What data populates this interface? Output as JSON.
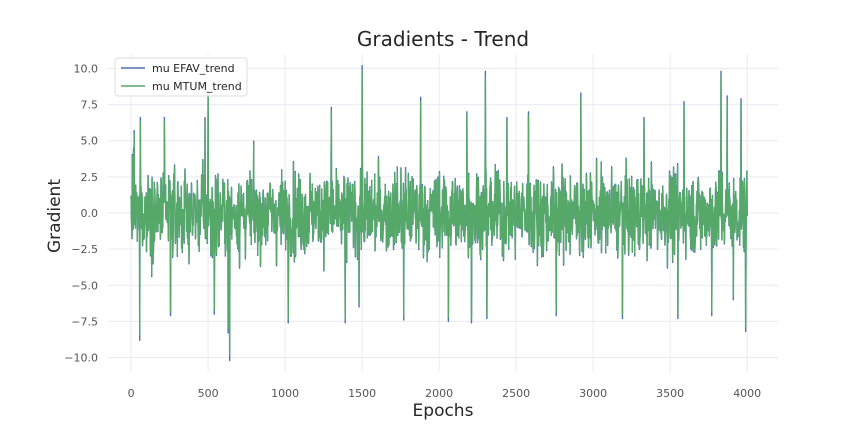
{
  "chart_data": {
    "type": "line",
    "title": "Gradients - Trend",
    "xlabel": "Epochs",
    "ylabel": "Gradient",
    "xlim": [
      -150,
      4200
    ],
    "ylim": [
      -11,
      11
    ],
    "x_ticks": [
      0,
      500,
      1000,
      1500,
      2000,
      2500,
      3000,
      3500,
      4000
    ],
    "y_ticks": [
      -10.0,
      -7.5,
      -5.0,
      -2.5,
      0.0,
      2.5,
      5.0,
      7.5,
      10.0
    ],
    "x_tick_labels": [
      "0",
      "500",
      "1000",
      "1500",
      "2000",
      "2500",
      "3000",
      "3500",
      "4000"
    ],
    "y_tick_labels": [
      "−10.0",
      "−7.5",
      "−5.0",
      "−2.5",
      "0.0",
      "2.5",
      "5.0",
      "7.5",
      "10.0"
    ],
    "grid": true,
    "legend_position": "top-left",
    "series": [
      {
        "name": "mu EFAV_trend",
        "color": "#4c72b0"
      },
      {
        "name": "mu MTUM_trend",
        "color": "#55a868"
      }
    ],
    "data_summary": {
      "x_start": 0,
      "x_end": 4000,
      "baseline_amplitude": 3.2,
      "peaks": [
        {
          "x": 15,
          "y": 4.5
        },
        {
          "x": 20,
          "y": 5.7
        },
        {
          "x": 55,
          "y": -8.8
        },
        {
          "x": 60,
          "y": 6.6
        },
        {
          "x": 215,
          "y": 6.6
        },
        {
          "x": 255,
          "y": -7.1
        },
        {
          "x": 480,
          "y": 6.6
        },
        {
          "x": 500,
          "y": 8.4
        },
        {
          "x": 540,
          "y": -7.0
        },
        {
          "x": 630,
          "y": -8.3
        },
        {
          "x": 640,
          "y": -10.2
        },
        {
          "x": 1020,
          "y": -7.6
        },
        {
          "x": 1300,
          "y": 7.3
        },
        {
          "x": 1390,
          "y": -7.6
        },
        {
          "x": 1480,
          "y": -6.5
        },
        {
          "x": 1500,
          "y": 10.2
        },
        {
          "x": 1770,
          "y": -7.4
        },
        {
          "x": 1880,
          "y": 8.0
        },
        {
          "x": 2060,
          "y": -7.5
        },
        {
          "x": 2180,
          "y": 7.0
        },
        {
          "x": 2210,
          "y": -7.6
        },
        {
          "x": 2300,
          "y": 9.8
        },
        {
          "x": 2310,
          "y": -7.3
        },
        {
          "x": 2440,
          "y": 6.6
        },
        {
          "x": 2580,
          "y": 7.0
        },
        {
          "x": 2760,
          "y": -7.1
        },
        {
          "x": 2920,
          "y": 8.3
        },
        {
          "x": 3190,
          "y": -7.3
        },
        {
          "x": 3330,
          "y": 6.6
        },
        {
          "x": 3550,
          "y": -7.3
        },
        {
          "x": 3590,
          "y": 7.7
        },
        {
          "x": 3770,
          "y": -7.1
        },
        {
          "x": 3830,
          "y": 9.8
        },
        {
          "x": 3870,
          "y": 8.1
        },
        {
          "x": 3910,
          "y": -6.0
        },
        {
          "x": 3960,
          "y": 7.9
        },
        {
          "x": 3990,
          "y": -8.2
        }
      ]
    }
  }
}
